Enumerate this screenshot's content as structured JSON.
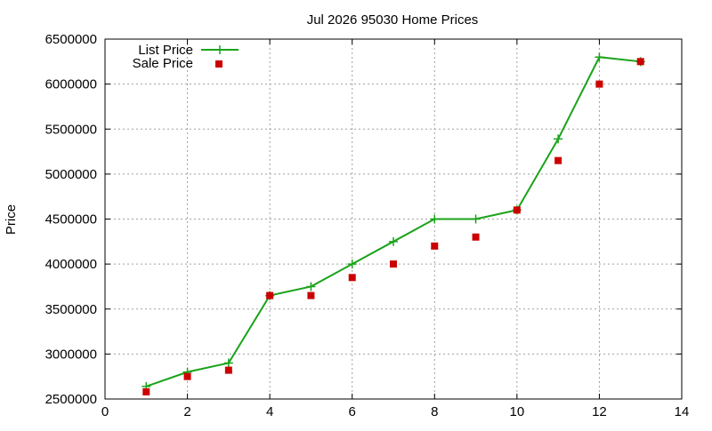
{
  "chart_data": {
    "type": "line",
    "title": "Jul 2026 95030 Home Prices",
    "xlabel": "",
    "ylabel": "Price",
    "xlim": [
      0,
      14
    ],
    "ylim": [
      2500000,
      6500000
    ],
    "xticks": [
      0,
      2,
      4,
      6,
      8,
      10,
      12,
      14
    ],
    "yticks": [
      2500000,
      3000000,
      3500000,
      4000000,
      4500000,
      5000000,
      5500000,
      6000000,
      6500000
    ],
    "grid": true,
    "legend_position": "top-left",
    "series": [
      {
        "name": "List Price",
        "style": "line-with-plus-markers",
        "color": "#1aa31a",
        "x": [
          1,
          2,
          3,
          4,
          5,
          6,
          7,
          8,
          9,
          10,
          11,
          12,
          13
        ],
        "y": [
          2640000,
          2800000,
          2900000,
          3650000,
          3750000,
          4000000,
          4250000,
          4500000,
          4500000,
          4600000,
          5390000,
          6300000,
          6250000
        ]
      },
      {
        "name": "Sale Price",
        "style": "square-markers",
        "color": "#cc0000",
        "x": [
          1,
          2,
          3,
          4,
          5,
          6,
          7,
          8,
          9,
          10,
          11,
          12,
          13
        ],
        "y": [
          2580000,
          2750000,
          2820000,
          3650000,
          3650000,
          3850000,
          4000000,
          4200000,
          4300000,
          4600000,
          5150000,
          6000000,
          6250000
        ]
      }
    ]
  }
}
